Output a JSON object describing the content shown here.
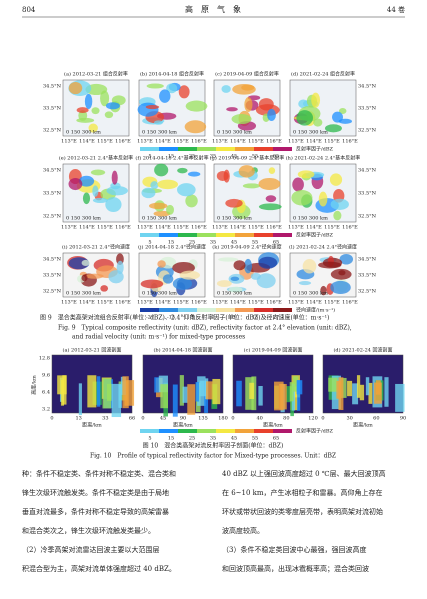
{
  "header": {
    "page": "804",
    "journal": "高　原　气　象",
    "volume": "44 卷"
  },
  "figure9": {
    "panels": [
      "(a) 2012-03-21 组合反射率",
      "(b) 2014-04-18 组合反射率",
      "(c) 2019-04-09 组合反射率",
      "(d) 2021-02-24 组合反射率",
      "(e) 2012-03-21 2.4°基本反射率",
      "(f) 2014-04-18 2.4°基本反射率",
      "(g) 2019-04-09 2.4°基本反射率",
      "(h) 2021-02-24 2.4°基本反射率",
      "(i) 2012-03-21 2.4°径向速度",
      "(j) 2014-04-18 2.4°径向速度",
      "(k) 2019-04-09 2.4°径向速度",
      "(l) 2021-02-24 2.4°径向速度"
    ],
    "lat_labels": [
      "34.5°N",
      "33.5°N",
      "32.5°N"
    ],
    "lon_labels": [
      "113°E",
      "114°E",
      "115°E",
      "116°E"
    ],
    "scale_bar": "0 150 300 km",
    "reflectivity_scale": [
      "5",
      "15",
      "25",
      "35",
      "45",
      "55",
      "65"
    ],
    "reflectivity_unit": "反射率因子/dBZ",
    "velocity_scale": [
      "-27",
      "-15",
      "-5",
      "0",
      "5",
      "15",
      "27"
    ],
    "velocity_unit": "径向速度/(m·s⁻¹)",
    "caption_zh": "图 9　混合类高架对流组合反射率(单位：dBZ)、2.4°仰角反射率因子(单位：dBZ)及径向速度(单位：m·s⁻¹)",
    "caption_en": [
      "Fig. 9　Typical composite reflectivity (unit: dBZ), reflectivity factor at 2.4° elevation (unit: dBZ),",
      "and radial velocity (unit: m·s⁻¹) for mixed-type processes"
    ]
  },
  "figure10": {
    "panels": [
      "(a) 2012-03-21 回波剖面",
      "(b) 2014-04-18 回波剖面",
      "(c) 2019-04-09 回波剖面",
      "(d) 2021-02-24 回波剖面"
    ],
    "height_ticks": [
      "12.8",
      "9.6",
      "6.4",
      "3.2"
    ],
    "y_label": "高度/km",
    "x_ticks": [
      [
        "0",
        "13",
        "33",
        "66"
      ],
      [
        "0",
        "45",
        "90",
        "135",
        "180"
      ],
      [
        "0",
        "40",
        "80",
        "120"
      ],
      [
        "0",
        "30",
        "60",
        "90"
      ]
    ],
    "x_label": "距离/km",
    "scale": [
      "5",
      "15",
      "25",
      "35",
      "45",
      "55",
      "65"
    ],
    "unit": "反射率因子/dBZ",
    "caption_zh": "图 10　混合类高架对流反射率因子剖面(单位：dBZ)",
    "caption_en": "Fig. 10　Profile of typical reflectivity factor for Mixed-type processes. Unit：dBZ"
  },
  "body": {
    "left": [
      "种：条件不稳定类、条件对称不稳定类、混合类和",
      "锋生次级环流触发类。条件不稳定类是由于局地",
      "垂直对流最多，条件对称不稳定导致的高架雷暴",
      "和混合类次之，锋生次级环流触发类最少。",
      "（2）冷季高架对流雷达回波主要以大范围层",
      "积混合型为主，高架对流单体强度超过 40 dBZ。"
    ],
    "right": [
      "40 dBZ 以上强回波高度超过 0 ℃层、最大回波顶高",
      "在 6~10 km，产生冰相粒子和雷暴。高仰角上存在",
      "环状或带状回波的类零度层亮带，表明高架对流初始",
      "波高度较高。",
      "（3）条件不稳定类回波中心最强，强回波高度",
      "和回波顶高最高，出现冰雹概率高；混合类回波"
    ]
  }
}
